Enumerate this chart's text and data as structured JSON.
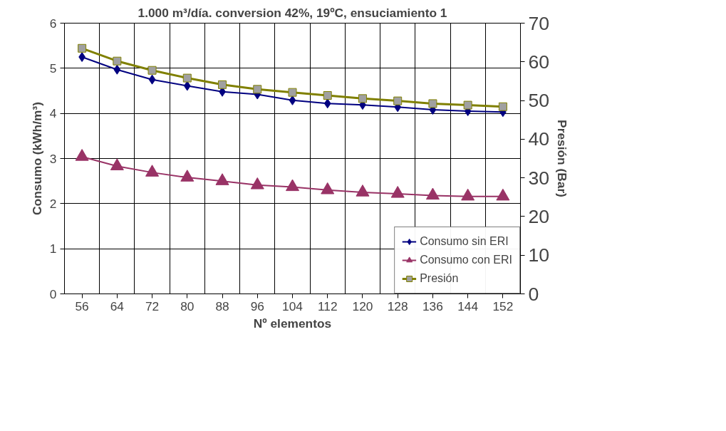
{
  "chart_data": {
    "type": "line",
    "title": "1.000 m³/día. conversion 42%, 19ºC, ensuciamiento 1",
    "xlabel": "Nº elementos",
    "ylabel": "Consumo (kWh/m³)",
    "y2label": "Presión (Bar)",
    "categories": [
      "56",
      "64",
      "72",
      "80",
      "88",
      "96",
      "104",
      "112",
      "120",
      "128",
      "136",
      "144",
      "152"
    ],
    "ylim": [
      0,
      6
    ],
    "yticks": [
      0,
      1,
      2,
      3,
      4,
      5,
      6
    ],
    "y2lim": [
      0,
      70
    ],
    "y2ticks": [
      0,
      10,
      20,
      30,
      40,
      50,
      60,
      70
    ],
    "grid": true,
    "legend": "bottom right",
    "series": [
      {
        "name": "Consumo sin ERI",
        "color": "#000080",
        "marker": "diamond",
        "values": [
          5.25,
          4.97,
          4.75,
          4.61,
          4.48,
          4.42,
          4.29,
          4.22,
          4.19,
          4.14,
          4.08,
          4.05,
          4.03
        ]
      },
      {
        "name": "Consumo con ERI",
        "color": "#993366",
        "marker": "triangle",
        "values": [
          3.04,
          2.83,
          2.69,
          2.58,
          2.5,
          2.41,
          2.37,
          2.3,
          2.25,
          2.22,
          2.18,
          2.16,
          2.16
        ]
      },
      {
        "name": "Presión",
        "color": "#808000",
        "marker": "square",
        "axis": "y2",
        "values": [
          63.5,
          60.2,
          57.8,
          55.8,
          54.1,
          52.9,
          52.1,
          51.3,
          50.5,
          49.9,
          49.2,
          48.8,
          48.4
        ]
      }
    ]
  }
}
